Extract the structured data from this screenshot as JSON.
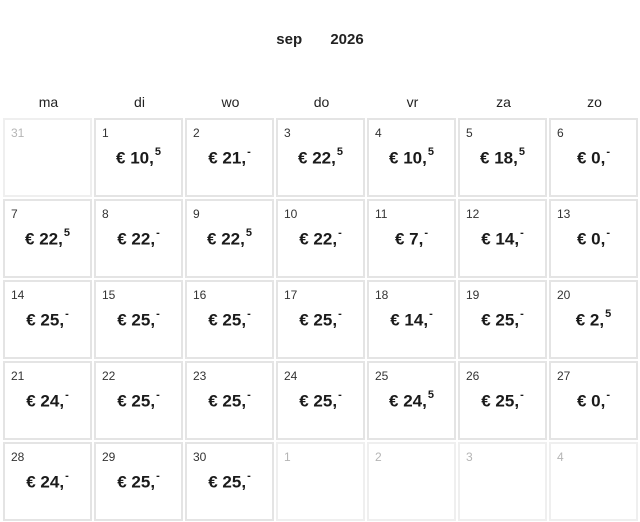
{
  "header": {
    "month": "sep",
    "year": "2026"
  },
  "weekdays": [
    "ma",
    "di",
    "wo",
    "do",
    "vr",
    "za",
    "zo"
  ],
  "weeks": [
    [
      {
        "day": "31",
        "muted": true
      },
      {
        "day": "1",
        "price": "€ 10,",
        "sup": "5"
      },
      {
        "day": "2",
        "price": "€ 21,",
        "sup": "-"
      },
      {
        "day": "3",
        "price": "€ 22,",
        "sup": "5"
      },
      {
        "day": "4",
        "price": "€ 10,",
        "sup": "5"
      },
      {
        "day": "5",
        "price": "€ 18,",
        "sup": "5"
      },
      {
        "day": "6",
        "price": "€ 0,",
        "sup": "-"
      }
    ],
    [
      {
        "day": "7",
        "price": "€ 22,",
        "sup": "5"
      },
      {
        "day": "8",
        "price": "€ 22,",
        "sup": "-"
      },
      {
        "day": "9",
        "price": "€ 22,",
        "sup": "5"
      },
      {
        "day": "10",
        "price": "€ 22,",
        "sup": "-"
      },
      {
        "day": "11",
        "price": "€ 7,",
        "sup": "-"
      },
      {
        "day": "12",
        "price": "€ 14,",
        "sup": "-"
      },
      {
        "day": "13",
        "price": "€ 0,",
        "sup": "-"
      }
    ],
    [
      {
        "day": "14",
        "price": "€ 25,",
        "sup": "-"
      },
      {
        "day": "15",
        "price": "€ 25,",
        "sup": "-"
      },
      {
        "day": "16",
        "price": "€ 25,",
        "sup": "-"
      },
      {
        "day": "17",
        "price": "€ 25,",
        "sup": "-"
      },
      {
        "day": "18",
        "price": "€ 14,",
        "sup": "-"
      },
      {
        "day": "19",
        "price": "€ 25,",
        "sup": "-"
      },
      {
        "day": "20",
        "price": "€ 2,",
        "sup": "5"
      }
    ],
    [
      {
        "day": "21",
        "price": "€ 24,",
        "sup": "-"
      },
      {
        "day": "22",
        "price": "€ 25,",
        "sup": "-"
      },
      {
        "day": "23",
        "price": "€ 25,",
        "sup": "-"
      },
      {
        "day": "24",
        "price": "€ 25,",
        "sup": "-"
      },
      {
        "day": "25",
        "price": "€ 24,",
        "sup": "5"
      },
      {
        "day": "26",
        "price": "€ 25,",
        "sup": "-"
      },
      {
        "day": "27",
        "price": "€ 0,",
        "sup": "-"
      }
    ],
    [
      {
        "day": "28",
        "price": "€ 24,",
        "sup": "-"
      },
      {
        "day": "29",
        "price": "€ 25,",
        "sup": "-"
      },
      {
        "day": "30",
        "price": "€ 25,",
        "sup": "-"
      },
      {
        "day": "1",
        "muted": true
      },
      {
        "day": "2",
        "muted": true
      },
      {
        "day": "3",
        "muted": true
      },
      {
        "day": "4",
        "muted": true
      }
    ]
  ]
}
